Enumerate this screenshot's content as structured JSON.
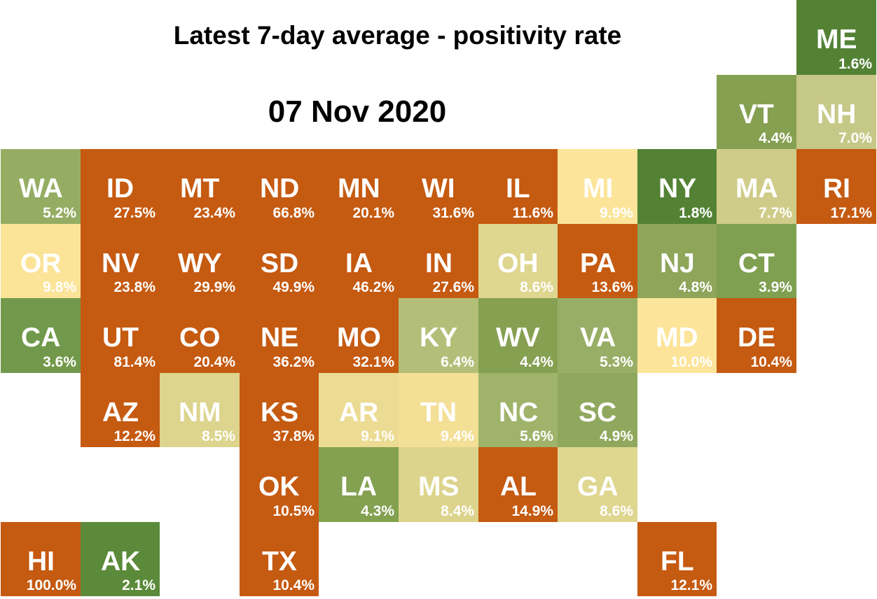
{
  "title": "Latest 7-day average - positivity rate",
  "date": "07 Nov 2020",
  "colors": {
    "high": "#c55a11",
    "dark_green": "#548235",
    "green": "#70a046",
    "green_light": "#8aa856",
    "olive": "#a9bd75",
    "pale_olive": "#c6c887",
    "tan": "#e0d58e",
    "pale_yellow": "#fce59a"
  },
  "states": [
    {
      "abbr": "ME",
      "value": "1.6%",
      "col": 10,
      "row": 0,
      "color": "#548235"
    },
    {
      "abbr": "VT",
      "value": "4.4%",
      "col": 9,
      "row": 1,
      "color": "#86a052"
    },
    {
      "abbr": "NH",
      "value": "7.0%",
      "col": 10,
      "row": 1,
      "color": "#c6c887"
    },
    {
      "abbr": "WA",
      "value": "5.2%",
      "col": 0,
      "row": 2,
      "color": "#95ad63"
    },
    {
      "abbr": "ID",
      "value": "27.5%",
      "col": 1,
      "row": 2,
      "color": "#c55a11"
    },
    {
      "abbr": "MT",
      "value": "23.4%",
      "col": 2,
      "row": 2,
      "color": "#c55a11"
    },
    {
      "abbr": "ND",
      "value": "66.8%",
      "col": 3,
      "row": 2,
      "color": "#c55a11"
    },
    {
      "abbr": "MN",
      "value": "20.1%",
      "col": 4,
      "row": 2,
      "color": "#c55a11"
    },
    {
      "abbr": "WI",
      "value": "31.6%",
      "col": 5,
      "row": 2,
      "color": "#c55a11"
    },
    {
      "abbr": "IL",
      "value": "11.6%",
      "col": 6,
      "row": 2,
      "color": "#c55a11"
    },
    {
      "abbr": "MI",
      "value": "9.9%",
      "col": 7,
      "row": 2,
      "color": "#fce59a"
    },
    {
      "abbr": "NY",
      "value": "1.8%",
      "col": 8,
      "row": 2,
      "color": "#548235"
    },
    {
      "abbr": "MA",
      "value": "7.7%",
      "col": 9,
      "row": 2,
      "color": "#cfcc8a"
    },
    {
      "abbr": "RI",
      "value": "17.1%",
      "col": 10,
      "row": 2,
      "color": "#c55a11"
    },
    {
      "abbr": "OR",
      "value": "9.8%",
      "col": 0,
      "row": 3,
      "color": "#fbe398"
    },
    {
      "abbr": "NV",
      "value": "23.8%",
      "col": 1,
      "row": 3,
      "color": "#c55a11"
    },
    {
      "abbr": "WY",
      "value": "29.9%",
      "col": 2,
      "row": 3,
      "color": "#c55a11"
    },
    {
      "abbr": "SD",
      "value": "49.9%",
      "col": 3,
      "row": 3,
      "color": "#c55a11"
    },
    {
      "abbr": "IA",
      "value": "46.2%",
      "col": 4,
      "row": 3,
      "color": "#c55a11"
    },
    {
      "abbr": "IN",
      "value": "27.6%",
      "col": 5,
      "row": 3,
      "color": "#c55a11"
    },
    {
      "abbr": "OH",
      "value": "8.6%",
      "col": 6,
      "row": 3,
      "color": "#dfd68f"
    },
    {
      "abbr": "PA",
      "value": "13.6%",
      "col": 7,
      "row": 3,
      "color": "#c55a11"
    },
    {
      "abbr": "NJ",
      "value": "4.8%",
      "col": 8,
      "row": 3,
      "color": "#8ea55a"
    },
    {
      "abbr": "CT",
      "value": "3.9%",
      "col": 9,
      "row": 3,
      "color": "#7fa050"
    },
    {
      "abbr": "CA",
      "value": "3.6%",
      "col": 0,
      "row": 4,
      "color": "#72994b"
    },
    {
      "abbr": "UT",
      "value": "81.4%",
      "col": 1,
      "row": 4,
      "color": "#c55a11"
    },
    {
      "abbr": "CO",
      "value": "20.4%",
      "col": 2,
      "row": 4,
      "color": "#c55a11"
    },
    {
      "abbr": "NE",
      "value": "36.2%",
      "col": 3,
      "row": 4,
      "color": "#c55a11"
    },
    {
      "abbr": "MO",
      "value": "32.1%",
      "col": 4,
      "row": 4,
      "color": "#c55a11"
    },
    {
      "abbr": "KY",
      "value": "6.4%",
      "col": 5,
      "row": 4,
      "color": "#b3bf78"
    },
    {
      "abbr": "WV",
      "value": "4.4%",
      "col": 6,
      "row": 4,
      "color": "#86a052"
    },
    {
      "abbr": "VA",
      "value": "5.3%",
      "col": 7,
      "row": 4,
      "color": "#98ae66"
    },
    {
      "abbr": "MD",
      "value": "10.0%",
      "col": 8,
      "row": 4,
      "color": "#fce59a"
    },
    {
      "abbr": "DE",
      "value": "10.4%",
      "col": 9,
      "row": 4,
      "color": "#c55a11"
    },
    {
      "abbr": "AZ",
      "value": "12.2%",
      "col": 1,
      "row": 5,
      "color": "#c55a11"
    },
    {
      "abbr": "NM",
      "value": "8.5%",
      "col": 2,
      "row": 5,
      "color": "#ddd48d"
    },
    {
      "abbr": "KS",
      "value": "37.8%",
      "col": 3,
      "row": 5,
      "color": "#c55a11"
    },
    {
      "abbr": "AR",
      "value": "9.1%",
      "col": 4,
      "row": 5,
      "color": "#ecdb93"
    },
    {
      "abbr": "TN",
      "value": "9.4%",
      "col": 5,
      "row": 5,
      "color": "#f3df96"
    },
    {
      "abbr": "NC",
      "value": "5.6%",
      "col": 6,
      "row": 5,
      "color": "#9fb36b"
    },
    {
      "abbr": "SC",
      "value": "4.9%",
      "col": 7,
      "row": 5,
      "color": "#90a85d"
    },
    {
      "abbr": "OK",
      "value": "10.5%",
      "col": 3,
      "row": 6,
      "color": "#c55a11"
    },
    {
      "abbr": "LA",
      "value": "4.3%",
      "col": 4,
      "row": 6,
      "color": "#83a150"
    },
    {
      "abbr": "MS",
      "value": "8.4%",
      "col": 5,
      "row": 6,
      "color": "#dcd48c"
    },
    {
      "abbr": "AL",
      "value": "14.9%",
      "col": 6,
      "row": 6,
      "color": "#c55a11"
    },
    {
      "abbr": "GA",
      "value": "8.6%",
      "col": 7,
      "row": 6,
      "color": "#dfd68f"
    },
    {
      "abbr": "HI",
      "value": "100.0%",
      "col": 0,
      "row": 7,
      "color": "#c55a11"
    },
    {
      "abbr": "AK",
      "value": "2.1%",
      "col": 1,
      "row": 7,
      "color": "#5b8a3a"
    },
    {
      "abbr": "TX",
      "value": "10.4%",
      "col": 3,
      "row": 7,
      "color": "#c55a11"
    },
    {
      "abbr": "FL",
      "value": "12.1%",
      "col": 8,
      "row": 7,
      "color": "#c55a11"
    }
  ]
}
